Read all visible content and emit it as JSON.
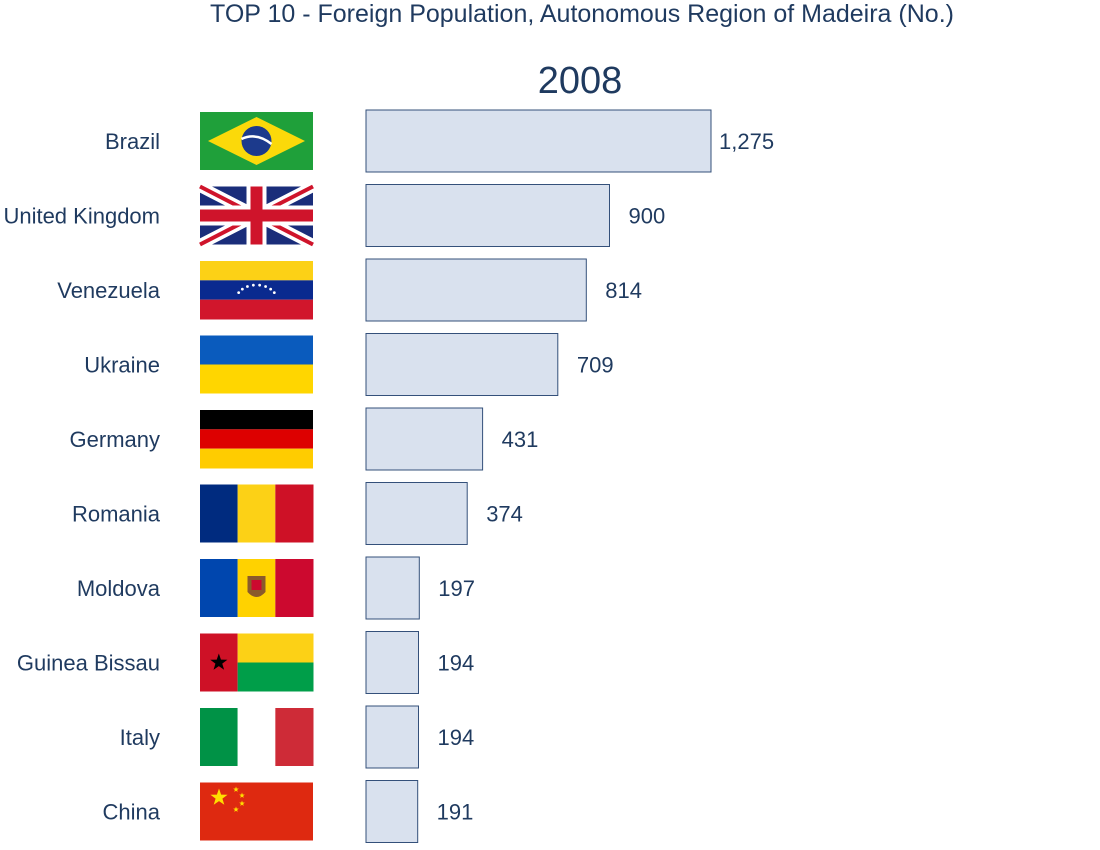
{
  "chart_data": {
    "type": "bar",
    "orientation": "horizontal",
    "title": "TOP 10 - Foreign Population, Autonomous Region of Madeira (No.)",
    "subtitle": "2008",
    "categories": [
      "Brazil",
      "United Kingdom",
      "Venezuela",
      "Ukraine",
      "Germany",
      "Romania",
      "Moldova",
      "Guinea Bissau",
      "Italy",
      "China"
    ],
    "values": [
      1275,
      900,
      814,
      709,
      431,
      374,
      197,
      194,
      194,
      191
    ],
    "value_labels": [
      "1,275",
      "900",
      "814",
      "709",
      "431",
      "374",
      "197",
      "194",
      "194",
      "191"
    ],
    "flags": [
      "brazil-flag-icon",
      "united-kingdom-flag-icon",
      "venezuela-flag-icon",
      "ukraine-flag-icon",
      "germany-flag-icon",
      "romania-flag-icon",
      "moldova-flag-icon",
      "guinea-bissau-flag-icon",
      "italy-flag-icon",
      "china-flag-icon"
    ],
    "grid": false,
    "legend": "none",
    "bar_fill": "#d9e1ee",
    "bar_stroke": "#34507a",
    "text_color": "#1f3a5f"
  }
}
